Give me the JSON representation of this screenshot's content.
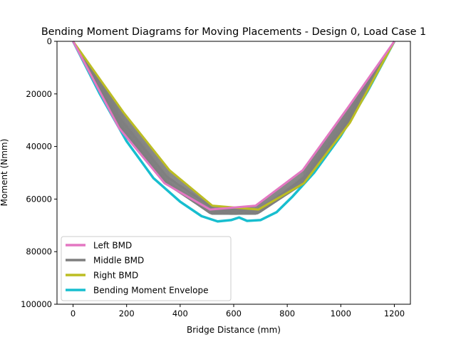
{
  "chart_data": {
    "type": "line",
    "title": "Bending Moment Diagrams for Moving Placements - Design 0, Load Case 1",
    "xlabel": "Bridge Distance (mm)",
    "ylabel": "Moment (Nmm)",
    "xlim": [
      -60,
      1260
    ],
    "ylim": [
      0,
      100000
    ],
    "y_inverted": true,
    "xticks": [
      0,
      200,
      400,
      600,
      800,
      1000,
      1200
    ],
    "yticks": [
      0,
      20000,
      40000,
      60000,
      80000,
      100000
    ],
    "grid": false,
    "legend_position": "lower-left",
    "series": [
      {
        "name": "Left BMD",
        "color": "#e377c2",
        "x": [
          0,
          172,
          342,
          512,
          682,
          858,
          1028,
          1200
        ],
        "y": [
          0,
          33000,
          54000,
          64000,
          62500,
          49000,
          25000,
          0
        ]
      },
      {
        "name": "Middle BMD",
        "color": "#7f7f7f",
        "x": [
          0,
          180,
          350,
          530,
          700,
          870,
          1040,
          1200
        ],
        "y": [
          0,
          30000,
          51500,
          64000,
          64500,
          51000,
          27500,
          0
        ]
      },
      {
        "name": "Right BMD",
        "color": "#bcbd22",
        "x": [
          0,
          188,
          360,
          520,
          692,
          862,
          1034,
          1200
        ],
        "y": [
          0,
          27000,
          49000,
          62500,
          64000,
          54000,
          31000,
          0
        ]
      },
      {
        "name": "Bending Moment Envelope",
        "color": "#17becf",
        "x": [
          0,
          100,
          200,
          300,
          400,
          480,
          540,
          590,
          620,
          650,
          700,
          760,
          820,
          900,
          1000,
          1100,
          1200
        ],
        "y": [
          0,
          20000,
          38000,
          52000,
          61000,
          66500,
          68500,
          68000,
          67000,
          68300,
          68000,
          65000,
          59000,
          50000,
          36000,
          19000,
          0
        ]
      }
    ]
  }
}
